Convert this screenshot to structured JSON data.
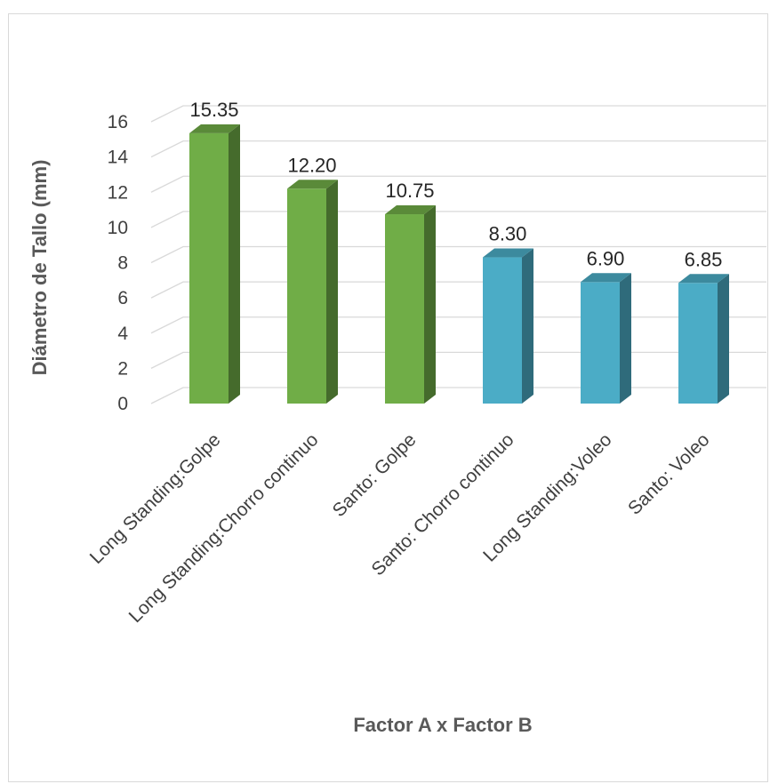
{
  "chart_data": {
    "type": "bar",
    "title": "",
    "xlabel": "Factor A x Factor B",
    "ylabel": "Diámetro de Tallo (mm)",
    "ylim": [
      0,
      16
    ],
    "ytick_step": 2,
    "grid": true,
    "categories": [
      "Long Standing:Golpe",
      "Long Standing:Chorro continuo",
      "Santo: Golpe",
      "Santo: Chorro continuo",
      "Long Standing:Voleo",
      "Santo: Voleo"
    ],
    "values": [
      15.35,
      12.2,
      10.75,
      8.3,
      6.9,
      6.85
    ],
    "data_labels": [
      "15.35",
      "12.20",
      "10.75",
      "8.30",
      "6.90",
      "6.85"
    ],
    "bar_colors": [
      "#70ad47",
      "#70ad47",
      "#70ad47",
      "#4bacc6",
      "#4bacc6",
      "#4bacc6"
    ],
    "gridline_color": "#d9d9d9"
  }
}
